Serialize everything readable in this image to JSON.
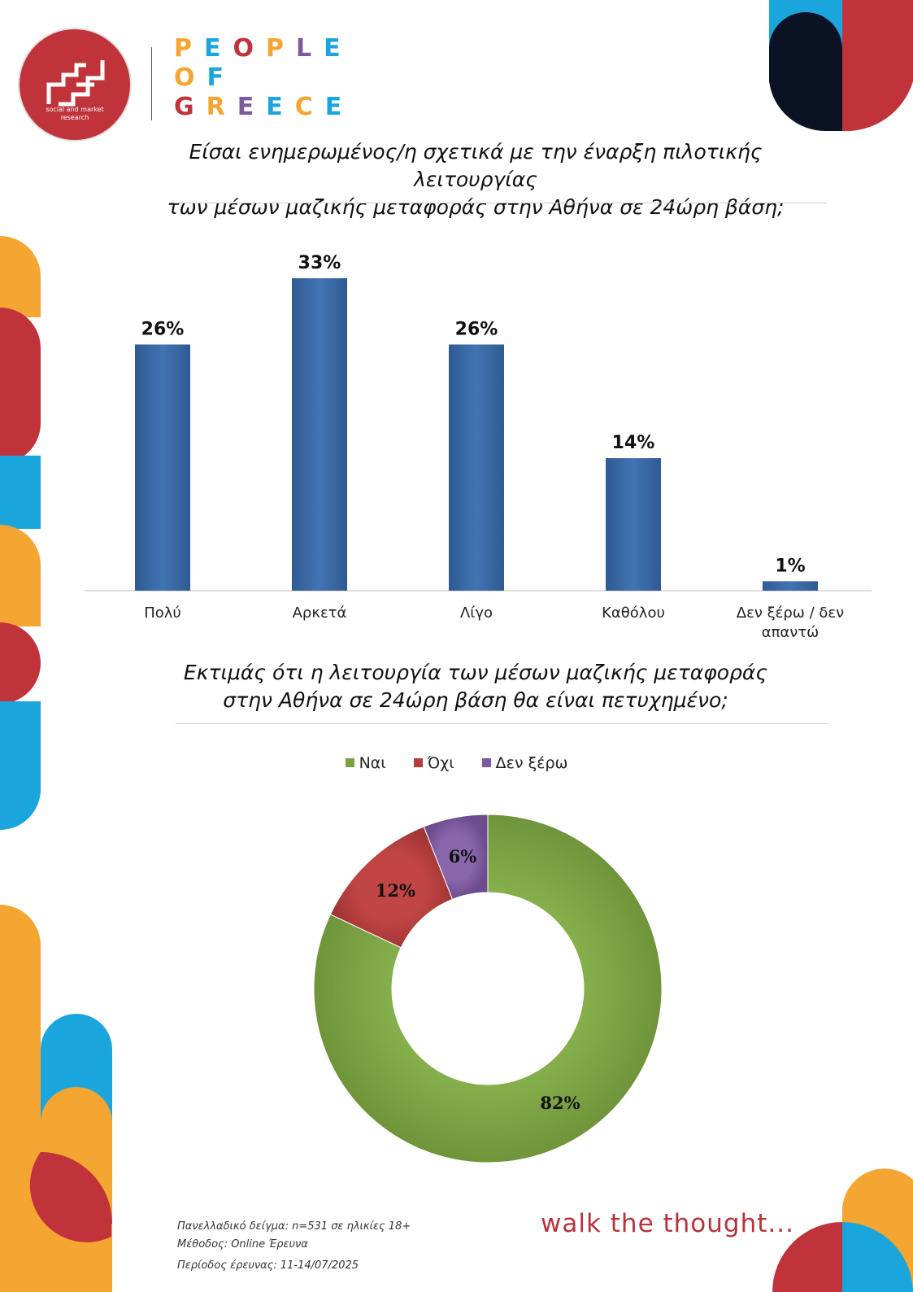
{
  "logo": {
    "subtitle_line1": "social and market",
    "subtitle_line2": "research"
  },
  "brand": {
    "line1": "PEOPLE",
    "line2": "OF",
    "line3": "GREECE"
  },
  "colors": {
    "red": "#c0333a",
    "blue": "#1aa6dd",
    "orange": "#f5a531",
    "navy": "#0b1224",
    "bar": "#3a66a3",
    "yes": "#7aa142",
    "no": "#b43c3b",
    "dontknow": "#7c5a9d",
    "brand_letters": [
      "#f5a531",
      "#1aa6dd",
      "#c0333a",
      "#f5a531",
      "#7c5a9d",
      "#1aa6dd"
    ]
  },
  "q1": {
    "title_line1": "Είσαι ενημερωμένος/η σχετικά με την έναρξη πιλοτικής λειτουργίας",
    "title_line2": "των μέσων μαζικής μεταφοράς στην Αθήνα σε 24ώρη βάση;"
  },
  "q2": {
    "title_line1": "Εκτιμάς ότι η λειτουργία των μέσων μαζικής μεταφοράς",
    "title_line2": "στην Αθήνα σε 24ώρη βάση θα είναι πετυχημένο;"
  },
  "chart_data": [
    {
      "type": "bar",
      "categories": [
        "Πολύ",
        "Αρκετά",
        "Λίγο",
        "Καθόλου",
        "Δεν ξέρω / δεν απαντώ"
      ],
      "category_lines": [
        [
          "Πολύ"
        ],
        [
          "Αρκετά"
        ],
        [
          "Λίγο"
        ],
        [
          "Καθόλου"
        ],
        [
          "Δεν ξέρω / δεν",
          "απαντώ"
        ]
      ],
      "values": [
        26,
        33,
        26,
        14,
        1
      ],
      "value_labels": [
        "26%",
        "33%",
        "26%",
        "14%",
        "1%"
      ],
      "ylim": [
        0,
        33
      ],
      "grid": false
    },
    {
      "type": "pie",
      "donut": true,
      "categories": [
        "Ναι",
        "Όχι",
        "Δεν ξέρω"
      ],
      "values": [
        82,
        12,
        6
      ],
      "value_labels": [
        "82%",
        "12%",
        "6%"
      ],
      "colors": [
        "#7aa142",
        "#b43c3b",
        "#7c5a9d"
      ],
      "legend_position": "top"
    }
  ],
  "footer": {
    "line1": "Πανελλαδικό δείγμα: n=531 σε ηλικίες 18+",
    "line2": "Μέθοδος: Online Έρευνα",
    "line3": "Περίοδος έρευνας:  11-14/07/2025"
  },
  "tagline": "walk the thought..."
}
